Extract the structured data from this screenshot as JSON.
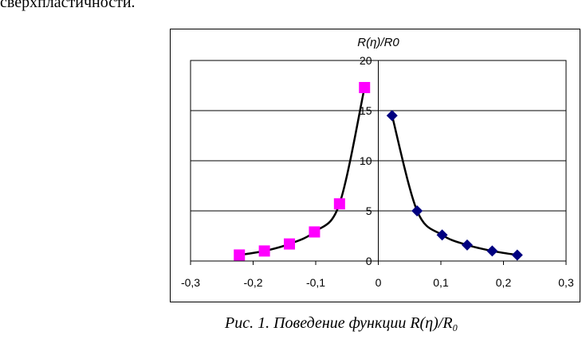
{
  "top_text": "сверхпластичности.",
  "caption": "Рис. 1. Поведение функции R(η)/R₀",
  "chart_data": {
    "type": "scatter",
    "title": "",
    "ylabel": "R(η)/R0",
    "xlabel": "",
    "xlim": [
      -0.3,
      0.3
    ],
    "ylim": [
      0,
      20
    ],
    "x_ticks": [
      "-0,3",
      "-0,2",
      "-0,1",
      "0",
      "0,1",
      "0,2",
      "0,3"
    ],
    "y_ticks": [
      "0",
      "5",
      "10",
      "15",
      "20"
    ],
    "grid": "horizontal",
    "legend": "none",
    "series": [
      {
        "color": "#ff00ff",
        "marker": "square",
        "points": [
          [
            -0.222,
            0.6
          ],
          [
            -0.182,
            1.0
          ],
          [
            -0.142,
            1.7
          ],
          [
            -0.102,
            2.9
          ],
          [
            -0.062,
            5.7
          ],
          [
            -0.022,
            17.3
          ]
        ]
      },
      {
        "color": "#000080",
        "marker": "diamond",
        "points": [
          [
            0.022,
            14.5
          ],
          [
            0.062,
            5.0
          ],
          [
            0.102,
            2.6
          ],
          [
            0.142,
            1.6
          ],
          [
            0.182,
            1.0
          ],
          [
            0.222,
            0.6
          ]
        ]
      }
    ]
  }
}
